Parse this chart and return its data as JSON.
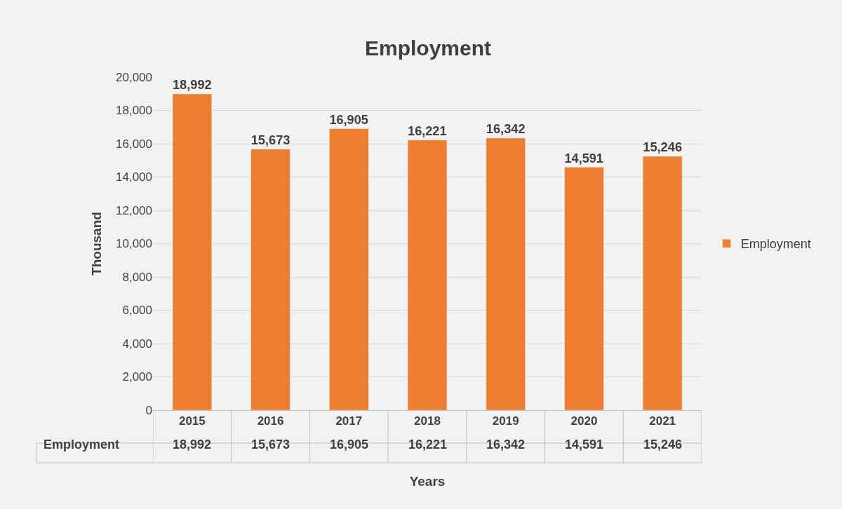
{
  "chart_data": {
    "type": "bar",
    "title": "Employment",
    "xlabel": "Years",
    "ylabel": "Thousand",
    "categories": [
      "2015",
      "2016",
      "2017",
      "2018",
      "2019",
      "2020",
      "2021"
    ],
    "series": [
      {
        "name": "Employment",
        "color": "#ed7d31",
        "values": [
          18992,
          15673,
          16905,
          16221,
          16342,
          14591,
          15246
        ],
        "value_labels": [
          "18,992",
          "15,673",
          "16,905",
          "16,221",
          "16,342",
          "14,591",
          "15,246"
        ]
      }
    ],
    "ylim": [
      0,
      20000
    ],
    "yticks": [
      {
        "value": 0,
        "label": "0"
      },
      {
        "value": 2000,
        "label": "2,000"
      },
      {
        "value": 4000,
        "label": "4,000"
      },
      {
        "value": 6000,
        "label": "6,000"
      },
      {
        "value": 8000,
        "label": "8,000"
      },
      {
        "value": 10000,
        "label": "10,000"
      },
      {
        "value": 12000,
        "label": "12,000"
      },
      {
        "value": 14000,
        "label": "14,000"
      },
      {
        "value": 16000,
        "label": "16,000"
      },
      {
        "value": 18000,
        "label": "18,000"
      },
      {
        "value": 20000,
        "label": "20,000"
      }
    ],
    "grid": "y",
    "legend": "right"
  }
}
